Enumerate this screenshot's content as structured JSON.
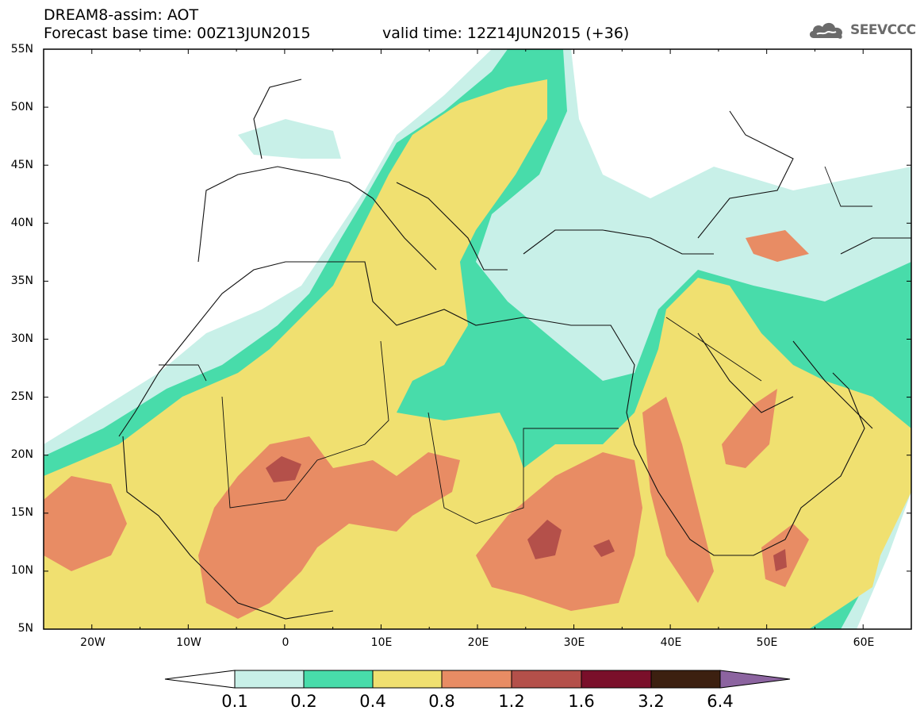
{
  "header": {
    "title": "DREAM8-assim: AOT",
    "base_time": "Forecast base time: 00Z13JUN2015",
    "valid_time": "valid time: 12Z14JUN2015 (+36)"
  },
  "logo": {
    "text": "SEEVCCC",
    "icon": "cloud-icon"
  },
  "map": {
    "variable": "AOT",
    "projection": "lat-lon",
    "lon_range": [
      -25,
      65
    ],
    "lat_range": [
      5,
      55
    ],
    "lat_ticks": [
      "55N",
      "50N",
      "45N",
      "40N",
      "35N",
      "30N",
      "25N",
      "20N",
      "15N",
      "10N",
      "5N"
    ],
    "lon_ticks": [
      "20W",
      "10W",
      "0",
      "10E",
      "20E",
      "30E",
      "40E",
      "50E",
      "60E"
    ]
  },
  "colorbar": {
    "labels": [
      "0.1",
      "0.2",
      "0.4",
      "0.8",
      "1.2",
      "1.6",
      "3.2",
      "6.4"
    ],
    "colors": [
      "#ffffff",
      "#c8f0e8",
      "#48dcaa",
      "#f0e070",
      "#e88c64",
      "#b4504a",
      "#7a0f2a",
      "#3c2010",
      "#8c64a0"
    ]
  }
}
